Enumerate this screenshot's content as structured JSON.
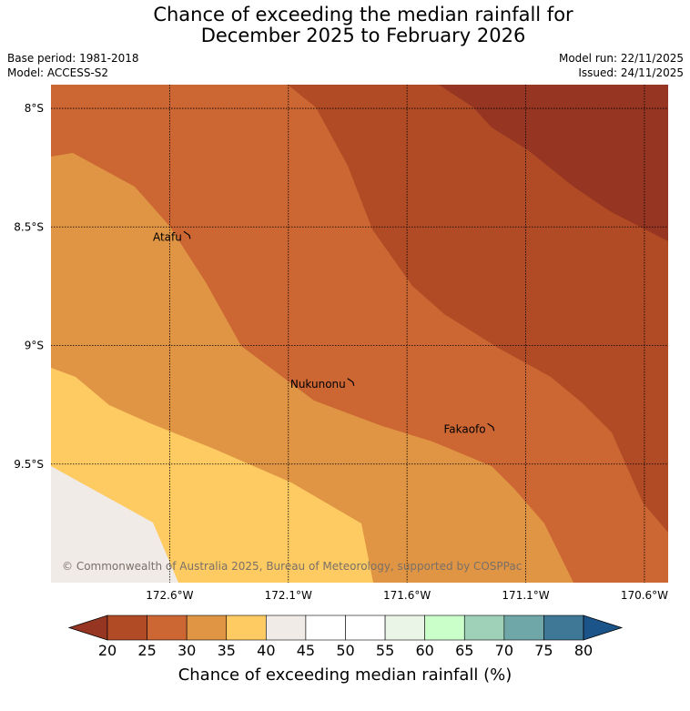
{
  "title": {
    "line1": "Chance of exceeding the median rainfall for",
    "line2": "December 2025 to February 2026"
  },
  "meta": {
    "base_period": "Base period: 1981-2018",
    "model": "Model: ACCESS-S2",
    "model_run": "Model run: 22/11/2025",
    "issued": "Issued: 24/11/2025"
  },
  "map": {
    "lat_labels": [
      "8°S",
      "8.5°S",
      "9°S",
      "9.5°S"
    ],
    "lon_labels": [
      "172.6°W",
      "172.1°W",
      "171.6°W",
      "171.1°W",
      "170.6°W"
    ],
    "places": [
      {
        "name": "Atafu",
        "lon": -172.51,
        "lat": -8.55
      },
      {
        "name": "Nukunonu",
        "lon": -171.82,
        "lat": -9.17
      },
      {
        "name": "Fakaofo",
        "lon": -171.23,
        "lat": -9.36
      }
    ],
    "copyright": "© Commonwealth of Australia 2025, Bureau of Meteorology, supported by COSPPac"
  },
  "colorbar": {
    "ticks": [
      "20",
      "25",
      "30",
      "35",
      "40",
      "45",
      "50",
      "55",
      "60",
      "65",
      "70",
      "75",
      "80"
    ],
    "colors": [
      "#b14b25",
      "#cc6633",
      "#e09544",
      "#fecb63",
      "#f0ebe7",
      "#ffffff",
      "#ffffff",
      "#eaf5e8",
      "#caffca",
      "#9fd1b8",
      "#6fa6a7",
      "#3f7796"
    ],
    "low_extend_color": "#963522",
    "high_extend_color": "#1a5489",
    "label": "Chance of exceeding median rainfall (%)"
  },
  "colors": {
    "band_lt20": "#963522",
    "band_20_25": "#b14b25",
    "band_25_30": "#cc6633",
    "band_30_35": "#e09544",
    "band_35_40": "#fecb63",
    "band_40_45": "#f0ebe7"
  }
}
